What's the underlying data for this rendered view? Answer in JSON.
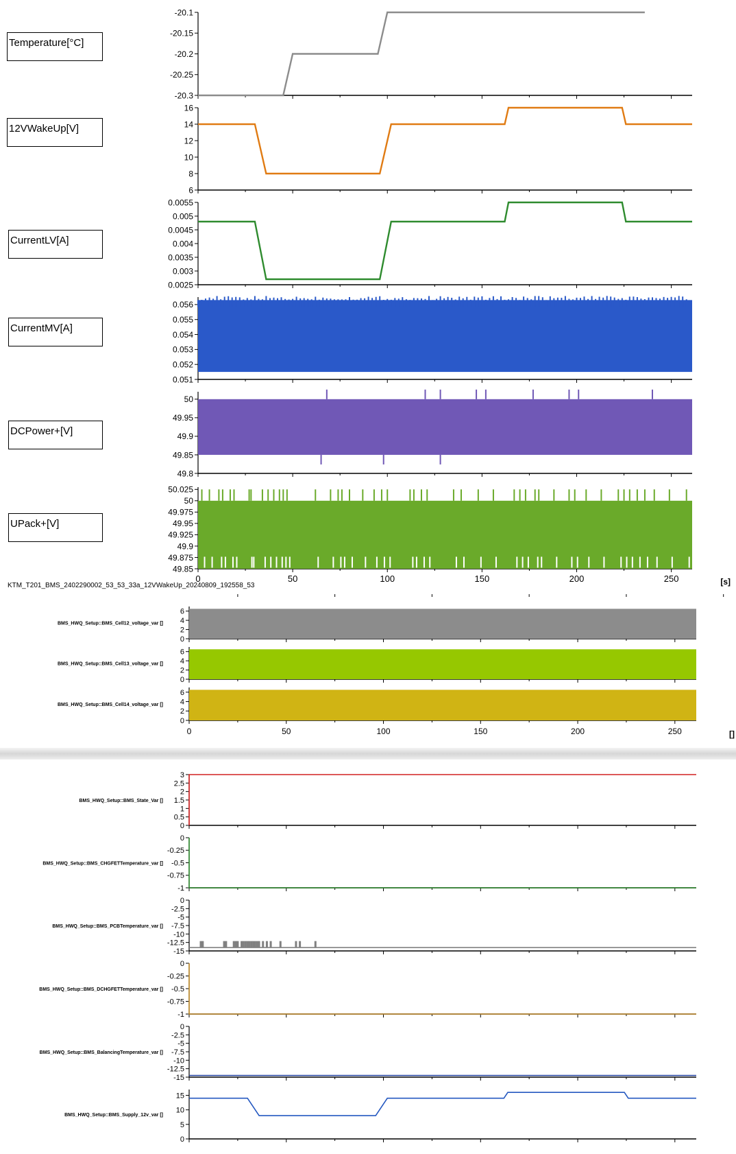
{
  "window": {
    "file_label": "KTM_T201_BMS_2402290002_53_53_33a_12VWakeUp_20240809_192558_53",
    "x_unit_label": "[s]",
    "x_unit_label_2": "[]"
  },
  "colors": {
    "temperature": "#8c8c8c",
    "wakeup": "#e07b13",
    "current_lv": "#2e8b2e",
    "current_mv": "#2a59c9",
    "dc_power": "#7058b6",
    "upack": "#6aaa2a",
    "cell12": "#8c8c8c",
    "cell13": "#96c800",
    "cell14": "#d0b414",
    "bms_state": "#d22020",
    "chg_fet": "#2e8b2e",
    "pcb_temp": "#808080",
    "dchg_fet": "#c08a28",
    "balancing": "#2040a0",
    "supply_12v": "#2458c0"
  },
  "chart_data": [
    {
      "type": "line",
      "panel": "upper",
      "label": "Temperature[°C]",
      "ylim": [
        -20.3,
        -20.1
      ],
      "yticks": [
        "-20.1",
        "-20.15",
        "-20.2",
        "-20.25",
        "-20.3"
      ],
      "x": [
        0,
        45,
        50,
        95,
        100,
        236
      ],
      "y": [
        -20.3,
        -20.3,
        -20.2,
        -20.2,
        -20.1,
        -20.1
      ]
    },
    {
      "type": "line",
      "panel": "upper",
      "label": "12VWakeUp[V]",
      "ylim": [
        6,
        16
      ],
      "yticks": [
        "16",
        "14",
        "12",
        "10",
        "8",
        "6"
      ],
      "x": [
        0,
        30,
        36,
        96,
        102,
        162,
        164,
        224,
        226,
        261
      ],
      "y": [
        14,
        14,
        8,
        8,
        14,
        14,
        16,
        16,
        14,
        14
      ]
    },
    {
      "type": "line",
      "panel": "upper",
      "label": "CurrentLV[A]",
      "ylim": [
        0.0025,
        0.0055
      ],
      "yticks": [
        "0.0055",
        "0.005",
        "0.0045",
        "0.004",
        "0.0035",
        "0.003",
        "0.0025"
      ],
      "x": [
        0,
        30,
        36,
        96,
        102,
        162,
        164,
        224,
        226,
        261
      ],
      "y": [
        0.0048,
        0.0048,
        0.0027,
        0.0027,
        0.0048,
        0.0048,
        0.0055,
        0.0055,
        0.0048,
        0.0048
      ]
    },
    {
      "type": "area",
      "panel": "upper",
      "label": "CurrentMV[A]",
      "ylim": [
        0.051,
        0.0565
      ],
      "yticks": [
        "0.056",
        "0.055",
        "0.054",
        "0.053",
        "0.052",
        "0.051"
      ],
      "x": [
        0,
        261
      ],
      "band": [
        0.0515,
        0.0563
      ]
    },
    {
      "type": "area",
      "panel": "upper",
      "label": "DCPower+[V]",
      "ylim": [
        49.8,
        50.02
      ],
      "yticks": [
        "50",
        "49.95",
        "49.9",
        "49.85",
        "49.8"
      ],
      "x": [
        0,
        261
      ],
      "band": [
        49.85,
        50.0
      ],
      "spikes_up_x": [
        68,
        120,
        128,
        147,
        152,
        177,
        196,
        201,
        240
      ],
      "spikes_down_x": [
        65,
        98,
        128
      ]
    },
    {
      "type": "area",
      "panel": "upper",
      "label": "UPack+[V]",
      "ylim": [
        49.85,
        50.03
      ],
      "yticks": [
        "50.025",
        "50",
        "49.975",
        "49.95",
        "49.925",
        "49.9",
        "49.875",
        "49.85"
      ],
      "x": [
        0,
        261
      ],
      "band": [
        49.85,
        50.0
      ],
      "xticks": [
        "0",
        "50",
        "100",
        "150",
        "200",
        "250"
      ]
    },
    {
      "type": "area",
      "panel": "cells",
      "label": "BMS_HWQ_Setup::BMS_Cell12_voltage_var []",
      "ylim": [
        0,
        7
      ],
      "yticks": [
        "6",
        "4",
        "2",
        "0"
      ],
      "x": [
        0,
        261
      ],
      "band": [
        0,
        6.5
      ]
    },
    {
      "type": "area",
      "panel": "cells",
      "label": "BMS_HWQ_Setup::BMS_Cell13_voltage_var []",
      "ylim": [
        0,
        7
      ],
      "yticks": [
        "6",
        "4",
        "2",
        "0"
      ],
      "x": [
        0,
        261
      ],
      "band": [
        0,
        6.5
      ]
    },
    {
      "type": "area",
      "panel": "cells",
      "label": "BMS_HWQ_Setup::BMS_Cell14_voltage_var []",
      "ylim": [
        0,
        7
      ],
      "yticks": [
        "6",
        "4",
        "2",
        "0"
      ],
      "x": [
        0,
        261
      ],
      "band": [
        0,
        6.5
      ],
      "xticks": [
        "0",
        "50",
        "100",
        "150",
        "200",
        "250"
      ]
    },
    {
      "type": "line",
      "panel": "bms",
      "label": "BMS_HWQ_Setup::BMS_State_Var []",
      "ylim": [
        0,
        3
      ],
      "yticks": [
        "3",
        "2.5",
        "2",
        "1.5",
        "1",
        "0.5",
        "0"
      ],
      "x": [
        0,
        0,
        261
      ],
      "y": [
        0,
        3,
        3
      ]
    },
    {
      "type": "line",
      "panel": "bms",
      "label": "BMS_HWQ_Setup::BMS_CHGFETTemperature_var []",
      "ylim": [
        -1,
        0
      ],
      "yticks": [
        "0",
        "-0.25",
        "-0.5",
        "-0.75",
        "-1"
      ],
      "x": [
        0,
        0,
        261
      ],
      "y": [
        0,
        -1,
        -1
      ]
    },
    {
      "type": "line",
      "panel": "bms",
      "label": "BMS_HWQ_Setup::BMS_PCBTemperature_var []",
      "ylim": [
        -15,
        0
      ],
      "yticks": [
        "0",
        "-2.5",
        "-5",
        "-7.5",
        "-10",
        "-12.5",
        "-15"
      ],
      "x": [
        0,
        261
      ],
      "y": [
        -14,
        -14
      ],
      "spikes_x": [
        6,
        7,
        18,
        19,
        23,
        24,
        25,
        27,
        28,
        29,
        30,
        31,
        32,
        33,
        34,
        35,
        36,
        38,
        40,
        42,
        47,
        55,
        57,
        65
      ]
    },
    {
      "type": "line",
      "panel": "bms",
      "label": "BMS_HWQ_Setup::BMS_DCHGFETTemperature_var []",
      "ylim": [
        -1,
        0
      ],
      "yticks": [
        "0",
        "-0.25",
        "-0.5",
        "-0.75",
        "-1"
      ],
      "x": [
        0,
        0,
        261
      ],
      "y": [
        0,
        -1,
        -1
      ]
    },
    {
      "type": "line",
      "panel": "bms",
      "label": "BMS_HWQ_Setup::BMS_BalancingTemperature_var []",
      "ylim": [
        -15,
        0
      ],
      "yticks": [
        "0",
        "-2.5",
        "-5",
        "-7.5",
        "-10",
        "-12.5",
        "-15"
      ],
      "x": [
        0,
        261
      ],
      "y": [
        -14.5,
        -14.5
      ]
    },
    {
      "type": "line",
      "panel": "bms",
      "label": "BMS_HWQ_Setup::BMS_Supply_12v_var []",
      "ylim": [
        0,
        17
      ],
      "yticks": [
        "15",
        "10",
        "5",
        "0"
      ],
      "x": [
        0,
        30,
        36,
        96,
        102,
        162,
        164,
        224,
        226,
        261
      ],
      "y": [
        14,
        14,
        8,
        8,
        14,
        14,
        16,
        16,
        14,
        14
      ]
    }
  ]
}
